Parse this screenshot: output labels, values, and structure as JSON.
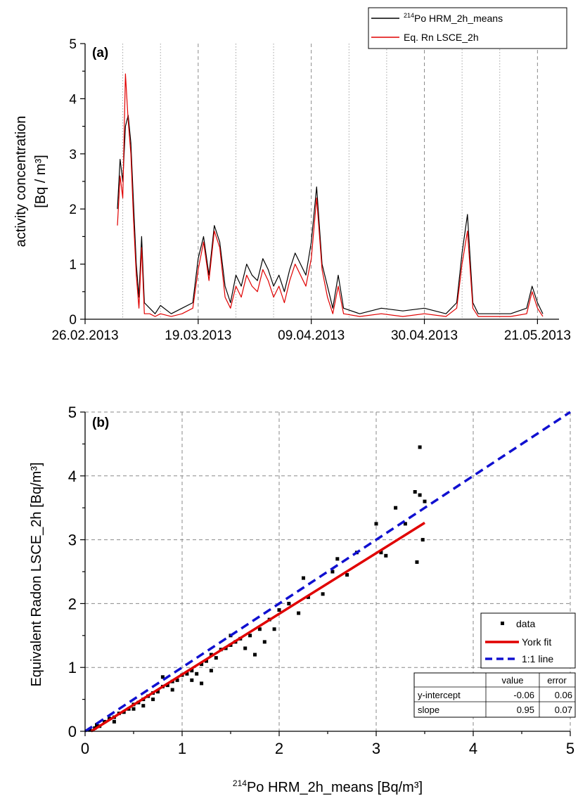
{
  "chart_data": [
    {
      "panel_label": "(a)",
      "type": "line",
      "ylabel_line1": "activity concentration",
      "ylabel_line2": "[Bq / m³]",
      "xlabel": "",
      "ylim": [
        0,
        5
      ],
      "yticks": [
        0,
        1,
        2,
        3,
        4,
        5
      ],
      "xlim": [
        "26.02.2013",
        "25.05.2013"
      ],
      "xtick_labels": [
        "26.02.2013",
        "19.03.2013",
        "09.04.2013",
        "30.04.2013",
        "21.05.2013"
      ],
      "grid": "vertical lines only",
      "legend_position": "top-right",
      "series": [
        {
          "name_sup": "214",
          "name": "Po HRM_2h_means",
          "color": "#000000",
          "x": [
            "2013-03-04",
            "2013-03-04T12:00",
            "2013-03-05",
            "2013-03-05T12:00",
            "2013-03-06",
            "2013-03-06T12:00",
            "2013-03-07",
            "2013-03-07T12:00",
            "2013-03-08",
            "2013-03-08T12:00",
            "2013-03-09",
            "2013-03-10",
            "2013-03-11",
            "2013-03-12",
            "2013-03-14",
            "2013-03-16",
            "2013-03-18",
            "2013-03-19",
            "2013-03-20",
            "2013-03-21",
            "2013-03-22",
            "2013-03-23",
            "2013-03-24",
            "2013-03-25",
            "2013-03-26",
            "2013-03-27",
            "2013-03-28",
            "2013-03-29",
            "2013-03-30",
            "2013-03-31",
            "2013-04-01",
            "2013-04-02",
            "2013-04-03",
            "2013-04-04",
            "2013-04-05",
            "2013-04-06",
            "2013-04-07",
            "2013-04-08",
            "2013-04-09",
            "2013-04-10",
            "2013-04-11",
            "2013-04-12",
            "2013-04-13",
            "2013-04-14",
            "2013-04-15",
            "2013-04-18",
            "2013-04-22",
            "2013-04-26",
            "2013-04-30",
            "2013-05-04",
            "2013-05-06",
            "2013-05-07",
            "2013-05-08",
            "2013-05-09",
            "2013-05-10",
            "2013-05-13",
            "2013-05-16",
            "2013-05-19",
            "2013-05-20",
            "2013-05-21",
            "2013-05-22"
          ],
          "values": [
            2.0,
            2.9,
            2.5,
            3.5,
            3.7,
            3.2,
            2.1,
            1.0,
            0.4,
            1.5,
            0.3,
            0.2,
            0.1,
            0.25,
            0.1,
            0.2,
            0.3,
            1.1,
            1.5,
            0.8,
            1.7,
            1.4,
            0.6,
            0.3,
            0.8,
            0.6,
            1.0,
            0.8,
            0.7,
            1.1,
            0.9,
            0.6,
            0.8,
            0.5,
            0.9,
            1.2,
            1.0,
            0.8,
            1.4,
            2.4,
            1.0,
            0.6,
            0.2,
            0.8,
            0.2,
            0.1,
            0.2,
            0.15,
            0.2,
            0.1,
            0.3,
            1.2,
            1.9,
            0.3,
            0.1,
            0.1,
            0.1,
            0.2,
            0.6,
            0.3,
            0.1
          ]
        },
        {
          "name": "Eq. Rn LSCE_2h",
          "color": "#e00000",
          "x": [
            "2013-03-04",
            "2013-03-04T12:00",
            "2013-03-05",
            "2013-03-05T12:00",
            "2013-03-06",
            "2013-03-06T12:00",
            "2013-03-07",
            "2013-03-07T12:00",
            "2013-03-08",
            "2013-03-08T12:00",
            "2013-03-09",
            "2013-03-10",
            "2013-03-11",
            "2013-03-12",
            "2013-03-14",
            "2013-03-16",
            "2013-03-18",
            "2013-03-19",
            "2013-03-20",
            "2013-03-21",
            "2013-03-22",
            "2013-03-23",
            "2013-03-24",
            "2013-03-25",
            "2013-03-26",
            "2013-03-27",
            "2013-03-28",
            "2013-03-29",
            "2013-03-30",
            "2013-03-31",
            "2013-04-01",
            "2013-04-02",
            "2013-04-03",
            "2013-04-04",
            "2013-04-05",
            "2013-04-06",
            "2013-04-07",
            "2013-04-08",
            "2013-04-09",
            "2013-04-10",
            "2013-04-11",
            "2013-04-12",
            "2013-04-13",
            "2013-04-14",
            "2013-04-15",
            "2013-04-18",
            "2013-04-22",
            "2013-04-26",
            "2013-04-30",
            "2013-05-04",
            "2013-05-06",
            "2013-05-07",
            "2013-05-08",
            "2013-05-09",
            "2013-05-10",
            "2013-05-13",
            "2013-05-16",
            "2013-05-19",
            "2013-05-20",
            "2013-05-21",
            "2013-05-22"
          ],
          "values": [
            1.7,
            2.6,
            2.2,
            4.45,
            3.6,
            3.0,
            1.8,
            0.8,
            0.2,
            1.3,
            0.1,
            0.1,
            0.05,
            0.1,
            0.05,
            0.1,
            0.2,
            0.9,
            1.4,
            0.7,
            1.6,
            1.3,
            0.4,
            0.2,
            0.6,
            0.4,
            0.8,
            0.6,
            0.5,
            0.9,
            0.7,
            0.4,
            0.6,
            0.3,
            0.7,
            1.0,
            0.8,
            0.6,
            1.1,
            2.2,
            0.9,
            0.4,
            0.1,
            0.6,
            0.1,
            0.05,
            0.1,
            0.05,
            0.1,
            0.05,
            0.2,
            1.0,
            1.6,
            0.2,
            0.05,
            0.05,
            0.05,
            0.1,
            0.5,
            0.2,
            0.05
          ]
        }
      ]
    },
    {
      "panel_label": "(b)",
      "type": "scatter",
      "xlabel_sup": "214",
      "xlabel": "Po HRM_2h_means [Bq/m³]",
      "ylabel": "Equivalent Radon LSCE_2h [Bq/m³]",
      "xlim": [
        0,
        5
      ],
      "ylim": [
        0,
        5
      ],
      "xticks": [
        0,
        1,
        2,
        3,
        4,
        5
      ],
      "yticks": [
        0,
        1,
        2,
        3,
        4,
        5
      ],
      "grid": true,
      "legend_position": "bottom-right",
      "legend": [
        "data",
        "York fit",
        "1:1 line"
      ],
      "colors": {
        "data": "#000000",
        "york_fit": "#e00000",
        "one_to_one": "#1010d0"
      },
      "points": [
        [
          0.05,
          0.02
        ],
        [
          0.1,
          0.05
        ],
        [
          0.12,
          0.1
        ],
        [
          0.15,
          0.08
        ],
        [
          0.2,
          0.15
        ],
        [
          0.25,
          0.2
        ],
        [
          0.3,
          0.22
        ],
        [
          0.35,
          0.28
        ],
        [
          0.4,
          0.3
        ],
        [
          0.45,
          0.35
        ],
        [
          0.5,
          0.42
        ],
        [
          0.55,
          0.45
        ],
        [
          0.6,
          0.5
        ],
        [
          0.65,
          0.55
        ],
        [
          0.7,
          0.6
        ],
        [
          0.75,
          0.62
        ],
        [
          0.8,
          0.7
        ],
        [
          0.85,
          0.72
        ],
        [
          0.9,
          0.78
        ],
        [
          0.95,
          0.8
        ],
        [
          1.0,
          0.88
        ],
        [
          1.05,
          0.9
        ],
        [
          1.1,
          0.95
        ],
        [
          1.15,
          0.9
        ],
        [
          1.2,
          1.05
        ],
        [
          1.25,
          1.1
        ],
        [
          1.3,
          1.2
        ],
        [
          1.35,
          1.15
        ],
        [
          1.4,
          1.28
        ],
        [
          1.45,
          1.3
        ],
        [
          1.5,
          1.35
        ],
        [
          1.55,
          1.4
        ],
        [
          1.6,
          1.45
        ],
        [
          1.65,
          1.3
        ],
        [
          1.7,
          1.5
        ],
        [
          1.75,
          1.2
        ],
        [
          1.8,
          1.6
        ],
        [
          1.85,
          1.4
        ],
        [
          1.9,
          1.75
        ],
        [
          1.95,
          1.6
        ],
        [
          2.0,
          1.9
        ],
        [
          2.1,
          2.0
        ],
        [
          2.2,
          1.85
        ],
        [
          2.25,
          2.4
        ],
        [
          2.3,
          2.1
        ],
        [
          2.45,
          2.15
        ],
        [
          2.55,
          2.5
        ],
        [
          2.6,
          2.7
        ],
        [
          2.7,
          2.45
        ],
        [
          2.8,
          2.8
        ],
        [
          3.0,
          3.25
        ],
        [
          3.05,
          2.8
        ],
        [
          3.1,
          2.75
        ],
        [
          3.2,
          3.5
        ],
        [
          3.3,
          3.25
        ],
        [
          3.4,
          3.75
        ],
        [
          3.42,
          2.65
        ],
        [
          3.45,
          3.7
        ],
        [
          3.45,
          4.45
        ],
        [
          3.48,
          3.0
        ],
        [
          3.5,
          3.6
        ],
        [
          0.3,
          0.15
        ],
        [
          0.5,
          0.35
        ],
        [
          0.7,
          0.5
        ],
        [
          0.9,
          0.65
        ],
        [
          1.1,
          0.8
        ],
        [
          0.8,
          0.85
        ],
        [
          1.5,
          1.5
        ],
        [
          1.2,
          0.75
        ],
        [
          0.6,
          0.4
        ],
        [
          1.3,
          0.95
        ]
      ],
      "york_fit": {
        "x_range": [
          0,
          3.5
        ],
        "intercept": -0.06,
        "slope": 0.95
      },
      "one_to_one": {
        "x_range": [
          0,
          5
        ]
      },
      "fit_table": {
        "headers": [
          "",
          "value",
          "error"
        ],
        "rows": [
          [
            "y-intercept",
            "-0.06",
            "0.06"
          ],
          [
            "slope",
            "0.95",
            "0.07"
          ]
        ]
      }
    }
  ]
}
